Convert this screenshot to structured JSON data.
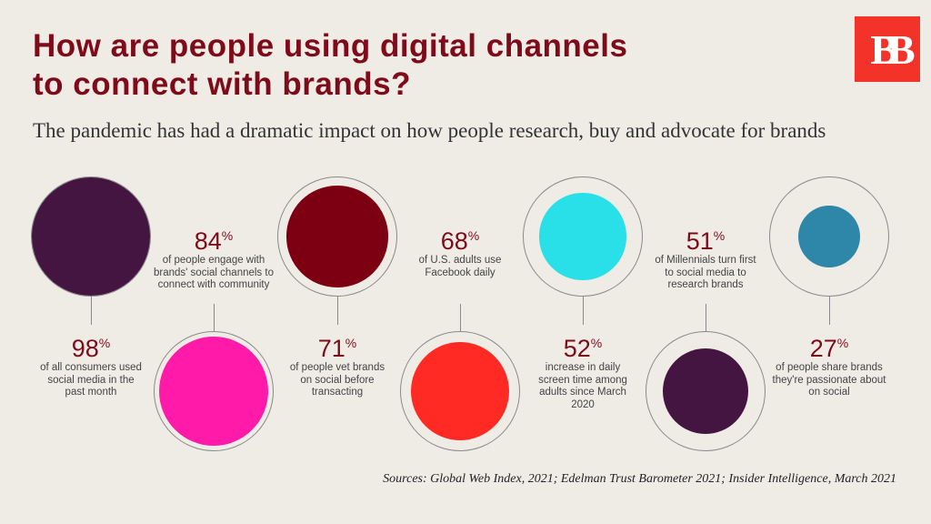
{
  "title_line1": "How are people using digital channels",
  "title_line2": "to connect with brands?",
  "subtitle": "The pandemic has had a dramatic impact on how people research, buy and advocate for brands",
  "logo_text": "BB",
  "percent_sign": "%",
  "stats": [
    {
      "value": "98",
      "text": "of all consumers used social media in the past month",
      "color": "#431540"
    },
    {
      "value": "84",
      "text": "of people engage with brands' social channels to connect with community",
      "color": "#ff1aaa"
    },
    {
      "value": "71",
      "text": "of people vet brands on social before transacting",
      "color": "#7c0012"
    },
    {
      "value": "68",
      "text": "of U.S. adults use Facebook daily",
      "color": "#ff2a24"
    },
    {
      "value": "52",
      "text": "increase in daily screen time among adults since March 2020",
      "color": "#2ae0e8"
    },
    {
      "value": "51",
      "text": "of Millennials turn first to social media to research brands",
      "color": "#431540"
    },
    {
      "value": "27",
      "text": "of people share brands they're passionate about on social",
      "color": "#2e87a8"
    }
  ],
  "sources": "Sources:  Global Web Index, 2021; Edelman Trust Barometer 2021; Insider Intelligence, March 2021"
}
